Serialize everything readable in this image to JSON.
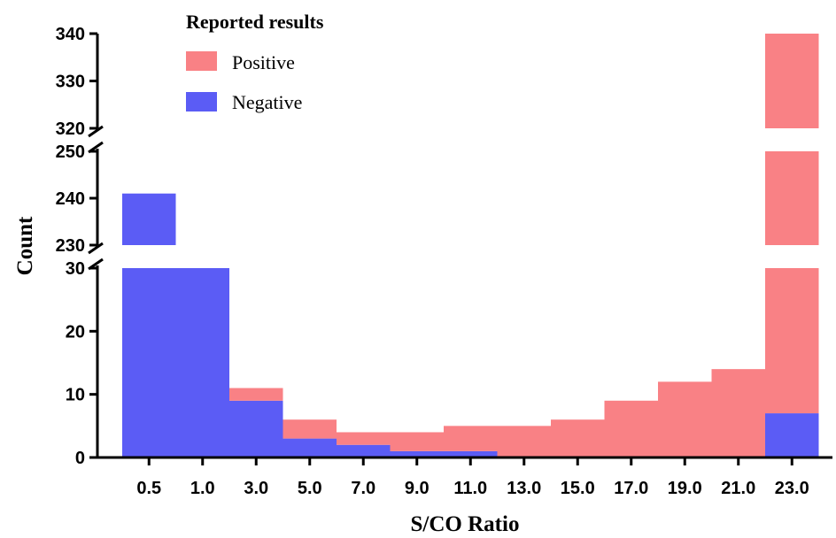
{
  "chart_data": {
    "type": "bar",
    "stacked": true,
    "broken_y_axis": true,
    "xlabel": "S/CO Ratio",
    "ylabel": "Count",
    "categories": [
      "0.5",
      "1.0",
      "3.0",
      "5.0",
      "7.0",
      "9.0",
      "11.0",
      "13.0",
      "15.0",
      "17.0",
      "19.0",
      "21.0",
      "23.0"
    ],
    "y_segments": [
      {
        "range": [
          0,
          30
        ],
        "ticks": [
          "0",
          "10",
          "20",
          "30"
        ]
      },
      {
        "range": [
          230,
          250
        ],
        "ticks": [
          "230",
          "240",
          "250"
        ]
      },
      {
        "range": [
          320,
          340
        ],
        "ticks": [
          "320",
          "330",
          "340"
        ]
      }
    ],
    "legend": {
      "title": "Reported results",
      "position": "top-left"
    },
    "series": [
      {
        "name": "Negative",
        "color": "#5b5cf5",
        "values": [
          241,
          30,
          9,
          3,
          2,
          1,
          1,
          0,
          0,
          0,
          0,
          0,
          7
        ]
      },
      {
        "name": "Positive",
        "color": "#f98185",
        "values": [
          0,
          0,
          2,
          3,
          2,
          3,
          4,
          5,
          6,
          9,
          12,
          14,
          333
        ]
      }
    ],
    "grid": false
  }
}
